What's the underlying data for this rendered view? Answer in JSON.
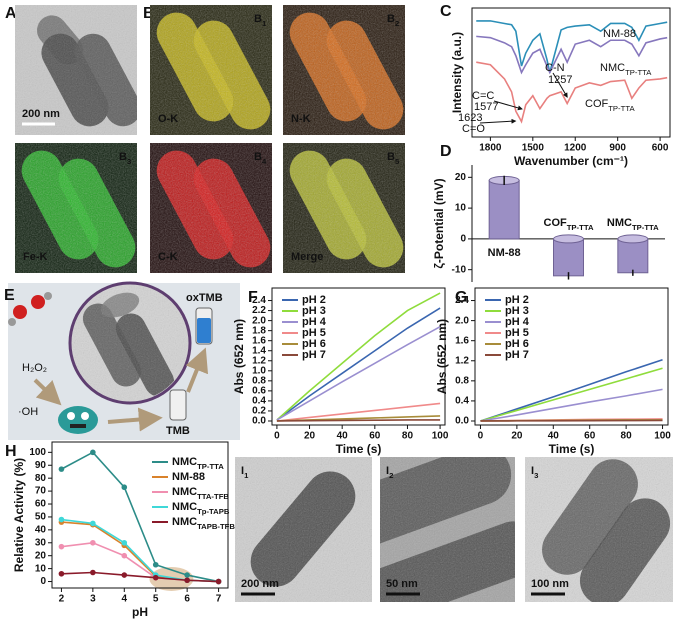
{
  "figure": {
    "A": {
      "label": "A",
      "scale_bar": "200 nm"
    },
    "B": {
      "label": "B",
      "maps": [
        {
          "label": "B",
          "sub": "1",
          "element": "O-K"
        },
        {
          "label": "B",
          "sub": "2",
          "element": "N-K"
        },
        {
          "label": "B",
          "sub": "3",
          "element": "Fe-K"
        },
        {
          "label": "B",
          "sub": "4",
          "element": "C-K"
        },
        {
          "label": "B",
          "sub": "5",
          "element": "Merge"
        }
      ]
    },
    "E": {
      "label": "E",
      "h2o2": "H₂O₂",
      "oh": "·OH",
      "oxtmb": "oxTMB",
      "tmb": "TMB"
    },
    "I": {
      "label": "I",
      "images": [
        {
          "label": "I",
          "sub": "1",
          "scale_bar": "200 nm"
        },
        {
          "label": "I",
          "sub": "2",
          "scale_bar": "50 nm"
        },
        {
          "label": "I",
          "sub": "3",
          "scale_bar": "100 nm"
        }
      ]
    }
  },
  "chart_data": [
    {
      "type": "line",
      "panel_label": "C",
      "xlabel": "Wavenumber (cm⁻¹)",
      "ylabel": "Intensity (a.u.)",
      "x": [
        1900,
        1800,
        1700,
        1650,
        1620,
        1580,
        1550,
        1500,
        1450,
        1400,
        1380,
        1300,
        1257,
        1200,
        1100,
        1020,
        950,
        850,
        800,
        750,
        700,
        600,
        550
      ],
      "xlim": [
        1930,
        530
      ],
      "xticks": [
        1800,
        1500,
        1200,
        900,
        600
      ],
      "ylim": [
        0,
        10
      ],
      "series": [
        {
          "name": "NM-88",
          "color": "#2b8fb8",
          "values": [
            9,
            9,
            8.8,
            8.7,
            8.2,
            5.5,
            6.5,
            7.5,
            8,
            6,
            5,
            8.3,
            8.5,
            8.6,
            8.7,
            8.2,
            8.8,
            8.8,
            8.5,
            7.5,
            8.6,
            8.8,
            8.9
          ]
        },
        {
          "name": "NMC",
          "name_sub": "TP-TTA",
          "color": "#8677bd",
          "values": [
            7.8,
            7.7,
            7.3,
            7,
            6.3,
            5,
            5.6,
            6.5,
            6.8,
            5.5,
            5,
            6.8,
            5.8,
            7.2,
            7.5,
            7,
            7.5,
            7.5,
            7.2,
            6.3,
            7.3,
            7.6,
            7.7
          ]
        },
        {
          "name": "COF",
          "name_sub": "TP-TTA",
          "color": "#e8807f",
          "values": [
            5.8,
            5.6,
            4.5,
            3.5,
            2,
            1.2,
            2.5,
            3.2,
            2.2,
            3,
            3.2,
            3.5,
            2.6,
            3.8,
            4.2,
            4,
            4.3,
            4.4,
            3,
            3.8,
            4.4,
            4.5,
            4.6
          ]
        }
      ],
      "annotations": [
        "C-N",
        "1257",
        "C=C",
        "1577",
        "1623",
        "C=O"
      ]
    },
    {
      "type": "bar",
      "panel_label": "D",
      "ylabel": "ζ-Potential (mV)",
      "categories": [
        "NM-88",
        "COF",
        "NMC"
      ],
      "category_subscripts": [
        null,
        "TP-TTA",
        "TP-TTA"
      ],
      "values": [
        19,
        -12,
        -11
      ],
      "errors": [
        1.5,
        1.2,
        1.0
      ],
      "color": "#9b8fc4",
      "ylim": [
        -14,
        24
      ],
      "yticks": [
        -10,
        0,
        10,
        20
      ]
    },
    {
      "type": "line",
      "panel_label": "F",
      "xlabel": "Time (s)",
      "ylabel": "Abs (652 nm)",
      "x": [
        0,
        20,
        40,
        60,
        80,
        100
      ],
      "xlim": [
        -3,
        103
      ],
      "xticks": [
        0,
        20,
        40,
        60,
        80,
        100
      ],
      "ylim": [
        -0.08,
        2.65
      ],
      "yticks": [
        {
          "value": 0,
          "label": "0.0"
        },
        0.2,
        0.4,
        0.6,
        0.8,
        {
          "value": 1,
          "label": "1.0"
        },
        1.2,
        1.4,
        1.6,
        1.8,
        {
          "value": 2,
          "label": "2.0"
        },
        2.2,
        2.4
      ],
      "legend": "upper left",
      "series": [
        {
          "name": "pH 2",
          "color": "#3a66b0",
          "values": [
            0.02,
            0.5,
            0.95,
            1.4,
            1.85,
            2.25
          ]
        },
        {
          "name": "pH 3",
          "color": "#8fdc3c",
          "values": [
            0.02,
            0.6,
            1.15,
            1.7,
            2.2,
            2.55
          ]
        },
        {
          "name": "pH 4",
          "color": "#9a8fd0",
          "values": [
            0.02,
            0.4,
            0.78,
            1.15,
            1.52,
            1.88
          ]
        },
        {
          "name": "pH 5",
          "color": "#f08a8a",
          "values": [
            0,
            0.07,
            0.14,
            0.21,
            0.28,
            0.35
          ]
        },
        {
          "name": "pH 6",
          "color": "#a88c3a",
          "values": [
            0,
            0.02,
            0.04,
            0.06,
            0.08,
            0.1
          ]
        },
        {
          "name": "pH 7",
          "color": "#8a4a3a",
          "values": [
            0,
            0.005,
            0.01,
            0.015,
            0.02,
            0.02
          ]
        }
      ]
    },
    {
      "type": "line",
      "panel_label": "G",
      "xlabel": "Time (s)",
      "ylabel": "Abs (652 nm)",
      "x": [
        0,
        20,
        40,
        60,
        80,
        100
      ],
      "xlim": [
        -3,
        103
      ],
      "xticks": [
        0,
        20,
        40,
        60,
        80,
        100
      ],
      "ylim": [
        -0.08,
        2.65
      ],
      "yticks": [
        {
          "value": 0,
          "label": "0.0"
        },
        0.4,
        0.8,
        1.2,
        1.6,
        {
          "value": 2,
          "label": "2.0"
        },
        2.4
      ],
      "legend": "upper left",
      "series": [
        {
          "name": "pH 2",
          "color": "#3a66b0",
          "values": [
            0,
            0.24,
            0.48,
            0.73,
            0.98,
            1.22
          ]
        },
        {
          "name": "pH 3",
          "color": "#8fdc3c",
          "values": [
            0,
            0.21,
            0.42,
            0.63,
            0.84,
            1.05
          ]
        },
        {
          "name": "pH 4",
          "color": "#9a8fd0",
          "values": [
            0,
            0.12,
            0.25,
            0.38,
            0.5,
            0.63
          ]
        },
        {
          "name": "pH 5",
          "color": "#f08a8a",
          "values": [
            0,
            0.01,
            0.02,
            0.03,
            0.035,
            0.04
          ]
        },
        {
          "name": "pH 6",
          "color": "#a88c3a",
          "values": [
            0,
            0.005,
            0.01,
            0.015,
            0.02,
            0.02
          ]
        },
        {
          "name": "pH 7",
          "color": "#8a4a3a",
          "values": [
            0,
            0.002,
            0.004,
            0.006,
            0.008,
            0.01
          ]
        }
      ]
    },
    {
      "type": "line",
      "panel_label": "H",
      "xlabel": "pH",
      "ylabel": "Relative Activity (%)",
      "x": [
        2,
        3,
        4,
        5,
        6,
        7
      ],
      "xlim": [
        1.7,
        7.3
      ],
      "xticks": [
        2,
        3,
        4,
        5,
        6,
        7
      ],
      "ylim": [
        -5,
        108
      ],
      "yticks": [
        0,
        10,
        20,
        30,
        40,
        50,
        60,
        70,
        80,
        90,
        100
      ],
      "legend": "upper right",
      "markers": true,
      "series": [
        {
          "name": "NMC",
          "name_sub": "TP-TTA",
          "color": "#2c8c88",
          "values": [
            87,
            100,
            73,
            13,
            5,
            0
          ]
        },
        {
          "name": "NM-88",
          "color": "#d9822b",
          "values": [
            46,
            44,
            28,
            4,
            1,
            0
          ]
        },
        {
          "name": "NMC",
          "name_sub": "TTA-TFB",
          "color": "#f08fb0",
          "values": [
            27,
            30,
            20,
            3,
            1,
            0
          ]
        },
        {
          "name": "NMC",
          "name_sub": "Tp-TAPB",
          "color": "#3fd8d8",
          "values": [
            48,
            45,
            30,
            5,
            1,
            0
          ]
        },
        {
          "name": "NMC",
          "name_sub": "TAPB-TFB",
          "color": "#8a1a2a",
          "values": [
            6,
            7,
            5,
            3,
            1,
            0
          ]
        }
      ]
    }
  ]
}
